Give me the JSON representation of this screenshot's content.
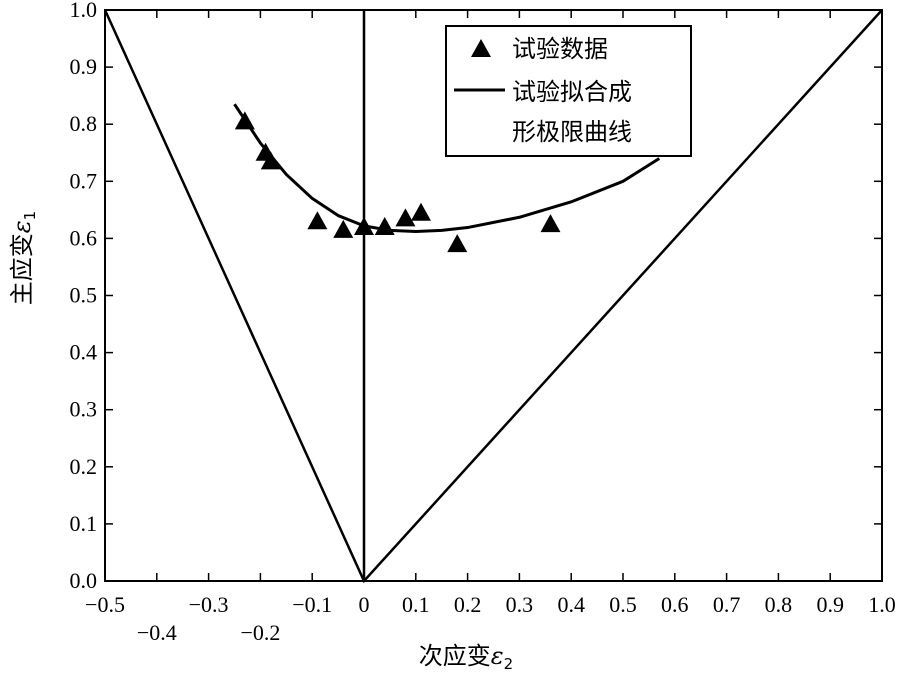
{
  "chart_data": {
    "type": "scatter",
    "xlabel": "次应变",
    "xlabel_symbol": "ε",
    "xlabel_sub": "2",
    "ylabel": "主应变",
    "ylabel_symbol": "ε",
    "ylabel_sub": "1",
    "xlim": [
      -0.5,
      1.0
    ],
    "ylim": [
      0.0,
      1.0
    ],
    "grid": false,
    "legend_position": "top-right",
    "x_ticks_row1": [
      "−0.5",
      "−0.3",
      "−0.1",
      "0",
      "0.1",
      "0.2",
      "0.3",
      "0.4",
      "0.5",
      "0.6",
      "0.7",
      "0.8",
      "0.9",
      "1.0"
    ],
    "x_ticks_row1_values": [
      -0.5,
      -0.3,
      -0.1,
      0,
      0.1,
      0.2,
      0.3,
      0.4,
      0.5,
      0.6,
      0.7,
      0.8,
      0.9,
      1.0
    ],
    "x_ticks_row2": [
      "−0.4",
      "−0.2"
    ],
    "x_ticks_row2_values": [
      -0.4,
      -0.2
    ],
    "y_ticks": [
      "0.0",
      "0.1",
      "0.2",
      "0.3",
      "0.4",
      "0.5",
      "0.6",
      "0.7",
      "0.8",
      "0.9",
      "1.0"
    ],
    "y_ticks_values": [
      0.0,
      0.1,
      0.2,
      0.3,
      0.4,
      0.5,
      0.6,
      0.7,
      0.8,
      0.9,
      1.0
    ],
    "series": [
      {
        "name": "试验数据",
        "type": "scatter",
        "marker": "triangle",
        "x": [
          -0.23,
          -0.19,
          -0.18,
          -0.09,
          -0.04,
          0.0,
          0.04,
          0.08,
          0.11,
          0.18,
          0.36
        ],
        "y": [
          0.805,
          0.75,
          0.735,
          0.63,
          0.615,
          0.62,
          0.62,
          0.635,
          0.645,
          0.59,
          0.625
        ]
      },
      {
        "name": "试验拟合成形极限曲线",
        "name_lines": [
          "试验拟合成",
          "形极限曲线"
        ],
        "type": "line",
        "x": [
          -0.25,
          -0.2,
          -0.15,
          -0.1,
          -0.05,
          0.0,
          0.05,
          0.1,
          0.15,
          0.2,
          0.3,
          0.4,
          0.5,
          0.57
        ],
        "y": [
          0.835,
          0.767,
          0.712,
          0.67,
          0.64,
          0.622,
          0.614,
          0.612,
          0.614,
          0.619,
          0.637,
          0.664,
          0.7,
          0.74
        ]
      }
    ],
    "reference_lines": [
      {
        "x": [
          -0.5,
          0.0,
          1.0
        ],
        "y": [
          1.0,
          0.0,
          1.0
        ]
      },
      {
        "x": [
          0.0,
          0.0
        ],
        "y": [
          0.0,
          1.0
        ]
      }
    ]
  }
}
